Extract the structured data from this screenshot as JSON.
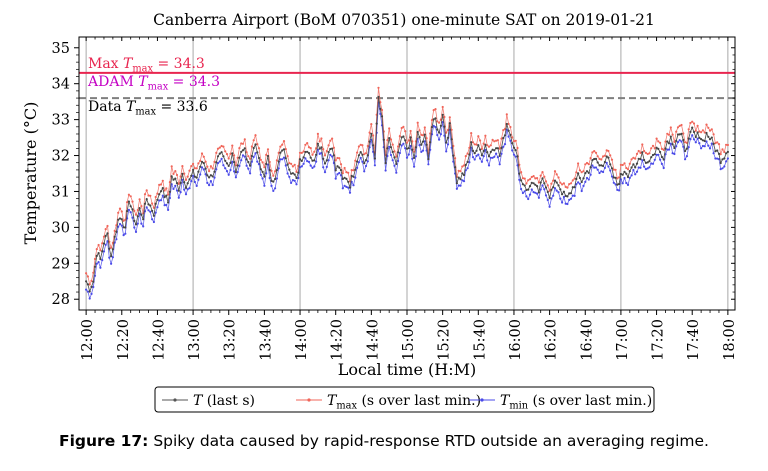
{
  "caption": {
    "label": "Figure 17:",
    "text": "Spiky data caused by rapid-response RTD outside an averaging regime."
  },
  "chart_data": {
    "type": "line",
    "title": "Canberra Airport (BoM 070351) one-minute SAT on 2019-01-21",
    "xlabel": "Local time (H:M)",
    "ylabel": "Temperature (°C)",
    "xlim": [
      "11:56",
      "18:04"
    ],
    "ylim": [
      27.7,
      35.3
    ],
    "yticks": [
      "28",
      "29",
      "30",
      "31",
      "32",
      "33",
      "34",
      "35"
    ],
    "xticks": [
      "12:00",
      "12:20",
      "12:40",
      "13:00",
      "13:20",
      "13:40",
      "14:00",
      "14:20",
      "14:40",
      "15:00",
      "15:20",
      "15:40",
      "16:00",
      "16:20",
      "16:40",
      "17:00",
      "17:20",
      "17:40",
      "18:00"
    ],
    "grid": "vertical lines at hours",
    "reference_lines": [
      {
        "label_prefix": "Max ",
        "label_sym": "T",
        "label_sub": "max",
        "label_suffix": " = 34.3",
        "value": 34.3,
        "color": "#e8254f",
        "style": "solid"
      },
      {
        "label_prefix": "ADAM ",
        "label_sym": "T",
        "label_sub": "max",
        "label_suffix": " = 34.3",
        "value": 34.3,
        "color": "#c400c4",
        "style": "solid"
      },
      {
        "label_prefix": "Data ",
        "label_sym": "T",
        "label_sub": "max",
        "label_suffix": " = 33.6",
        "value": 33.6,
        "color": "#7f7f7f",
        "style": "dashed"
      }
    ],
    "legend": {
      "placement": "bottom-center",
      "entries": [
        {
          "sym": "T",
          "sub": "",
          "text": " (last s)",
          "color": "#555555"
        },
        {
          "sym": "T",
          "sub": "max",
          "text": " (s over last min.)",
          "color": "#f0665a"
        },
        {
          "sym": "T",
          "sub": "min",
          "text": " (s over last min.)",
          "color": "#4a4ae8"
        }
      ]
    },
    "series": [
      {
        "name": "T (last s)",
        "color": "#444444",
        "keypoints": [
          [
            "12:00",
            28.5
          ],
          [
            "12:02",
            28.3
          ],
          [
            "12:04",
            28.5
          ],
          [
            "12:06",
            29.3
          ],
          [
            "12:08",
            29.1
          ],
          [
            "12:10",
            29.6
          ],
          [
            "12:12",
            29.8
          ],
          [
            "12:14",
            29.2
          ],
          [
            "12:16",
            29.7
          ],
          [
            "12:18",
            30.2
          ],
          [
            "12:20",
            30.3
          ],
          [
            "12:22",
            29.9
          ],
          [
            "12:24",
            30.8
          ],
          [
            "12:26",
            30.4
          ],
          [
            "12:28",
            30.1
          ],
          [
            "12:30",
            30.5
          ],
          [
            "12:32",
            30.3
          ],
          [
            "12:34",
            30.8
          ],
          [
            "12:36",
            30.6
          ],
          [
            "12:38",
            30.4
          ],
          [
            "12:40",
            30.8
          ],
          [
            "12:42",
            31.1
          ],
          [
            "12:44",
            30.9
          ],
          [
            "12:46",
            30.7
          ],
          [
            "12:48",
            31.4
          ],
          [
            "12:50",
            31.3
          ],
          [
            "12:52",
            31.1
          ],
          [
            "12:54",
            31.5
          ],
          [
            "12:56",
            31.2
          ],
          [
            "12:58",
            31.3
          ],
          [
            "13:00",
            31.5
          ],
          [
            "13:02",
            31.4
          ],
          [
            "13:04",
            31.7
          ],
          [
            "13:06",
            31.8
          ],
          [
            "13:08",
            31.5
          ],
          [
            "13:10",
            31.4
          ],
          [
            "13:12",
            31.6
          ],
          [
            "13:14",
            31.9
          ],
          [
            "13:16",
            32.0
          ],
          [
            "13:18",
            31.8
          ],
          [
            "13:20",
            31.7
          ],
          [
            "13:22",
            32.1
          ],
          [
            "13:24",
            31.6
          ],
          [
            "13:26",
            31.9
          ],
          [
            "13:28",
            32.2
          ],
          [
            "13:30",
            32.0
          ],
          [
            "13:32",
            31.7
          ],
          [
            "13:34",
            32.3
          ],
          [
            "13:36",
            32.1
          ],
          [
            "13:38",
            31.6
          ],
          [
            "13:40",
            31.5
          ],
          [
            "13:42",
            31.9
          ],
          [
            "13:44",
            31.4
          ],
          [
            "13:46",
            31.3
          ],
          [
            "13:48",
            31.8
          ],
          [
            "13:50",
            32.2
          ],
          [
            "13:52",
            32.0
          ],
          [
            "13:54",
            31.7
          ],
          [
            "13:56",
            31.5
          ],
          [
            "13:58",
            31.3
          ],
          [
            "14:00",
            31.9
          ],
          [
            "14:02",
            32.0
          ],
          [
            "14:04",
            32.2
          ],
          [
            "14:06",
            32.0
          ],
          [
            "14:08",
            31.8
          ],
          [
            "14:10",
            32.4
          ],
          [
            "14:12",
            32.2
          ],
          [
            "14:14",
            31.8
          ],
          [
            "14:16",
            32.1
          ],
          [
            "14:18",
            32.3
          ],
          [
            "14:20",
            31.6
          ],
          [
            "14:22",
            31.7
          ],
          [
            "14:24",
            31.3
          ],
          [
            "14:26",
            31.4
          ],
          [
            "14:28",
            31.2
          ],
          [
            "14:30",
            31.5
          ],
          [
            "14:32",
            31.9
          ],
          [
            "14:34",
            32.2
          ],
          [
            "14:36",
            31.8
          ],
          [
            "14:38",
            32.0
          ],
          [
            "14:40",
            32.6
          ],
          [
            "14:42",
            32.0
          ],
          [
            "14:44",
            33.6
          ],
          [
            "14:46",
            33.0
          ],
          [
            "14:48",
            31.8
          ],
          [
            "14:50",
            32.4
          ],
          [
            "14:52",
            32.1
          ],
          [
            "14:54",
            31.7
          ],
          [
            "14:56",
            32.3
          ],
          [
            "14:58",
            32.5
          ],
          [
            "15:00",
            32.2
          ],
          [
            "15:02",
            32.4
          ],
          [
            "15:04",
            31.9
          ],
          [
            "15:06",
            32.6
          ],
          [
            "15:08",
            32.3
          ],
          [
            "15:10",
            32.5
          ],
          [
            "15:12",
            32.0
          ],
          [
            "15:14",
            32.8
          ],
          [
            "15:16",
            33.0
          ],
          [
            "15:18",
            32.6
          ],
          [
            "15:20",
            33.2
          ],
          [
            "15:22",
            32.4
          ],
          [
            "15:24",
            32.8
          ],
          [
            "15:26",
            32.1
          ],
          [
            "15:28",
            31.3
          ],
          [
            "15:30",
            31.4
          ],
          [
            "15:32",
            31.5
          ],
          [
            "15:34",
            31.8
          ],
          [
            "15:36",
            32.3
          ],
          [
            "15:38",
            32.1
          ],
          [
            "15:40",
            32.2
          ],
          [
            "15:42",
            32.1
          ],
          [
            "15:44",
            32.3
          ],
          [
            "15:46",
            32.0
          ],
          [
            "15:48",
            32.2
          ],
          [
            "15:50",
            32.3
          ],
          [
            "15:52",
            32.0
          ],
          [
            "15:54",
            32.4
          ],
          [
            "15:56",
            32.9
          ],
          [
            "15:58",
            32.6
          ],
          [
            "16:00",
            32.3
          ],
          [
            "16:02",
            31.9
          ],
          [
            "16:04",
            31.3
          ],
          [
            "16:06",
            31.2
          ],
          [
            "16:08",
            31.0
          ],
          [
            "16:10",
            31.3
          ],
          [
            "16:12",
            31.1
          ],
          [
            "16:14",
            31.0
          ],
          [
            "16:16",
            31.3
          ],
          [
            "16:18",
            31.2
          ],
          [
            "16:20",
            30.9
          ],
          [
            "16:22",
            31.1
          ],
          [
            "16:24",
            31.3
          ],
          [
            "16:26",
            31.1
          ],
          [
            "16:28",
            30.9
          ],
          [
            "16:30",
            30.8
          ],
          [
            "16:32",
            31.0
          ],
          [
            "16:34",
            31.2
          ],
          [
            "16:36",
            31.4
          ],
          [
            "16:38",
            31.3
          ],
          [
            "16:40",
            31.5
          ],
          [
            "16:42",
            31.6
          ],
          [
            "16:44",
            31.8
          ],
          [
            "16:46",
            31.9
          ],
          [
            "16:48",
            31.7
          ],
          [
            "16:50",
            31.8
          ],
          [
            "16:52",
            32.0
          ],
          [
            "16:54",
            31.7
          ],
          [
            "16:56",
            31.4
          ],
          [
            "16:58",
            31.2
          ],
          [
            "17:00",
            31.4
          ],
          [
            "17:02",
            31.6
          ],
          [
            "17:04",
            31.5
          ],
          [
            "17:06",
            31.7
          ],
          [
            "17:08",
            31.6
          ],
          [
            "17:10",
            31.9
          ],
          [
            "17:12",
            32.1
          ],
          [
            "17:14",
            31.8
          ],
          [
            "17:16",
            31.9
          ],
          [
            "17:18",
            32.0
          ],
          [
            "17:20",
            32.2
          ],
          [
            "17:22",
            32.1
          ],
          [
            "17:24",
            32.0
          ],
          [
            "17:26",
            32.4
          ],
          [
            "17:28",
            32.5
          ],
          [
            "17:30",
            32.3
          ],
          [
            "17:32",
            32.6
          ],
          [
            "17:34",
            32.5
          ],
          [
            "17:36",
            32.2
          ],
          [
            "17:38",
            32.4
          ],
          [
            "17:40",
            32.7
          ],
          [
            "17:42",
            32.5
          ],
          [
            "17:44",
            32.6
          ],
          [
            "17:46",
            32.4
          ],
          [
            "17:48",
            32.6
          ],
          [
            "17:50",
            32.5
          ],
          [
            "17:52",
            32.3
          ],
          [
            "17:54",
            32.1
          ],
          [
            "17:56",
            31.9
          ],
          [
            "17:58",
            32.0
          ],
          [
            "18:00",
            32.2
          ]
        ]
      },
      {
        "name": "Tmax (s over last min.)",
        "color": "#f0665a",
        "offset_from_T": 0.22
      },
      {
        "name": "Tmin (s over last min.)",
        "color": "#4a4ae8",
        "offset_from_T": -0.2
      }
    ]
  }
}
